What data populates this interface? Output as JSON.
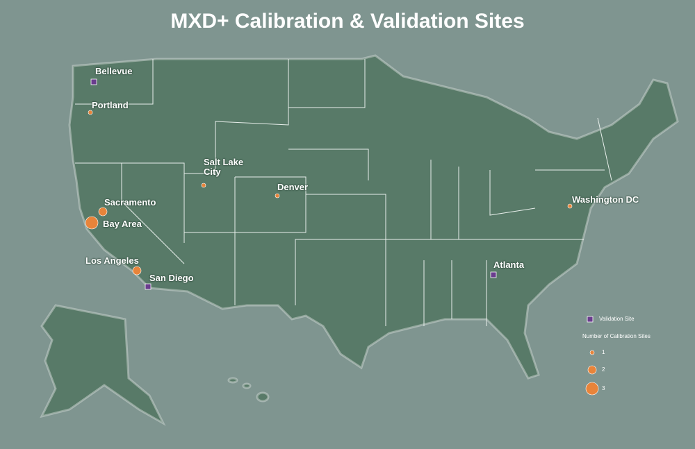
{
  "title": "MXD+ Calibration & Validation Sites",
  "validation_sites": [
    {
      "label": "Bellevue"
    },
    {
      "label": "San Diego"
    },
    {
      "label": "Atlanta"
    }
  ],
  "calibration_sites": [
    {
      "label": "Portland",
      "count": 1
    },
    {
      "label": "Salt Lake City",
      "count": 1
    },
    {
      "label": "Denver",
      "count": 1
    },
    {
      "label": "Sacramento",
      "count": 2
    },
    {
      "label": "Bay Area",
      "count": 3
    },
    {
      "label": "Los Angeles",
      "count": 2
    },
    {
      "label": "Washington DC",
      "count": 1
    }
  ],
  "legend": {
    "validation_label": "Validation Site",
    "calibration_title": "Number of Calibration Sites",
    "calibration_sizes": [
      1,
      2,
      3
    ]
  }
}
